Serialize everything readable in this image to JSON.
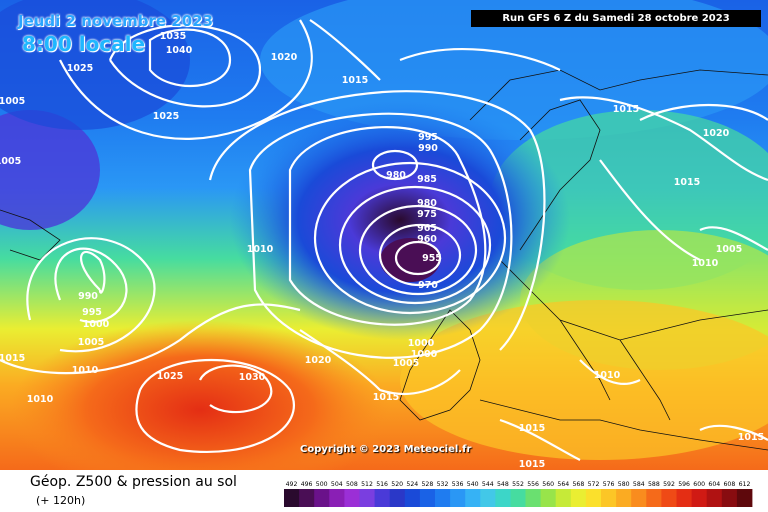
{
  "header": {
    "date_line": "Jeudi 2 novembre 2023",
    "time_line": "8:00 locale",
    "run_label": "Run GFS 6 Z du Samedi 28 octobre 2023"
  },
  "copyright": "Copyright © 2023 Meteociel.fr",
  "footer": {
    "title": "Géop. Z500 & pression au sol",
    "subtitle": "(+ 120h)"
  },
  "legend": {
    "values": [
      "492",
      "496",
      "500",
      "504",
      "508",
      "512",
      "516",
      "520",
      "524",
      "528",
      "532",
      "536",
      "540",
      "544",
      "548",
      "552",
      "556",
      "560",
      "564",
      "568",
      "572",
      "576",
      "580",
      "584",
      "588",
      "592",
      "596",
      "600",
      "604",
      "608",
      "612"
    ],
    "colors": [
      "#2a0a2e",
      "#4a0e55",
      "#6a128a",
      "#8a1fb5",
      "#9b2fd6",
      "#7a3ee0",
      "#4a3ad8",
      "#2a38c8",
      "#1a4ad8",
      "#1a62e6",
      "#1f7cf0",
      "#2a97f5",
      "#36b2f5",
      "#42c8e8",
      "#3cd6c8",
      "#46dca0",
      "#6ae070",
      "#98e44a",
      "#c6ea38",
      "#eaee32",
      "#fbe02c",
      "#fcc626",
      "#fbab22",
      "#f98c1e",
      "#f56a1a",
      "#ef4a16",
      "#e42e14",
      "#d01a14",
      "#b01212",
      "#880c10",
      "#5e080c"
    ]
  },
  "isobars": [
    "1035",
    "1040",
    "1020",
    "1025",
    "1025",
    "1015",
    "1005",
    "1005",
    "995",
    "990",
    "980",
    "985",
    "980",
    "975",
    "965",
    "960",
    "955",
    "970",
    "1015",
    "1020",
    "1015",
    "1010",
    "1005",
    "1010",
    "990",
    "995",
    "1000",
    "1005",
    "1010",
    "1015",
    "1010",
    "1025",
    "1030",
    "1020",
    "1000",
    "1000",
    "1005",
    "1015",
    "1010",
    "1015",
    "1015",
    "1015"
  ]
}
